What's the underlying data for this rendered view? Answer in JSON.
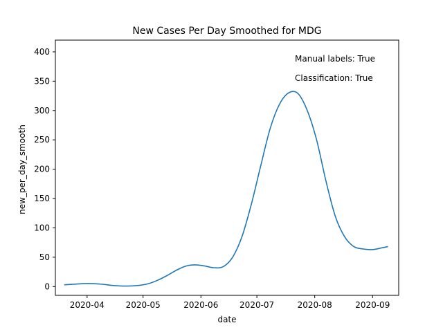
{
  "chart_data": {
    "type": "line",
    "title": "New Cases Per Day Smoothed for MDG",
    "xlabel": "date",
    "ylabel": "new_per_day_smooth",
    "xlim": [
      "2020-03-15",
      "2020-09-15"
    ],
    "ylim": [
      -15,
      420
    ],
    "xticks": [
      "2020-04",
      "2020-05",
      "2020-06",
      "2020-07",
      "2020-08",
      "2020-09"
    ],
    "xtick_dates": [
      "2020-04-01",
      "2020-05-01",
      "2020-06-01",
      "2020-07-01",
      "2020-08-01",
      "2020-09-01"
    ],
    "yticks": [
      0,
      50,
      100,
      150,
      200,
      250,
      300,
      350,
      400
    ],
    "grid": false,
    "annotations": [
      "Manual labels: True",
      "Classification: True"
    ],
    "annotation_position": "top-right",
    "series": [
      {
        "color": "#1f77b4",
        "x": [
          "2020-03-20",
          "2020-03-25",
          "2020-03-30",
          "2020-04-04",
          "2020-04-09",
          "2020-04-14",
          "2020-04-19",
          "2020-04-24",
          "2020-04-29",
          "2020-05-04",
          "2020-05-09",
          "2020-05-14",
          "2020-05-19",
          "2020-05-24",
          "2020-05-29",
          "2020-06-03",
          "2020-06-08",
          "2020-06-13",
          "2020-06-18",
          "2020-06-23",
          "2020-06-28",
          "2020-07-03",
          "2020-07-08",
          "2020-07-13",
          "2020-07-18",
          "2020-07-23",
          "2020-07-28",
          "2020-08-02",
          "2020-08-07",
          "2020-08-12",
          "2020-08-17",
          "2020-08-22",
          "2020-08-27",
          "2020-09-01",
          "2020-09-06",
          "2020-09-09"
        ],
        "y": [
          3,
          4,
          5,
          5,
          4,
          2,
          1,
          1,
          2,
          5,
          11,
          19,
          28,
          35,
          37,
          35,
          32,
          34,
          50,
          85,
          140,
          205,
          268,
          310,
          330,
          329,
          300,
          250,
          180,
          120,
          85,
          68,
          64,
          63,
          66,
          68
        ]
      }
    ]
  }
}
